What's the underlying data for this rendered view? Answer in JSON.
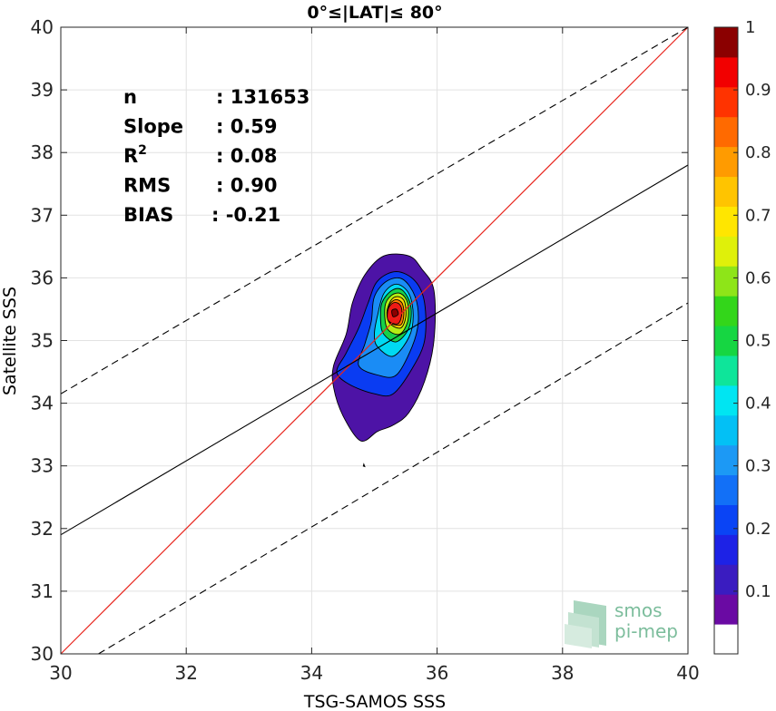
{
  "chart_data": {
    "type": "contour",
    "title": "0°≤|LAT|≤ 80°",
    "xlabel": "TSG-SAMOS SSS",
    "ylabel": "Satellite SSS",
    "xlim": [
      30,
      40
    ],
    "ylim": [
      30,
      40
    ],
    "xticks": [
      "30",
      "32",
      "34",
      "36",
      "38",
      "40"
    ],
    "yticks": [
      "30",
      "31",
      "32",
      "33",
      "34",
      "35",
      "36",
      "37",
      "38",
      "39",
      "40"
    ],
    "grid": true,
    "stats": [
      {
        "label": "n",
        "sep": ":",
        "value": "131653"
      },
      {
        "label": "Slope",
        "sep": ":",
        "value": "0.59"
      },
      {
        "label": "R",
        "sup": "2",
        "sep": ":",
        "value": "0.08"
      },
      {
        "label": "RMS",
        "sep": ":",
        "value": "0.90"
      },
      {
        "label": "BIAS",
        "sep": ":",
        "value": "-0.21"
      }
    ],
    "lines": {
      "identity": {
        "x": [
          30,
          40
        ],
        "y": [
          30,
          40
        ],
        "color": "#e8241c"
      },
      "fit": {
        "x": [
          30,
          40
        ],
        "y": [
          31.9,
          37.8
        ],
        "color": "#000000"
      },
      "upper_dashed": {
        "x": [
          30,
          40
        ],
        "y": [
          34.15,
          40.0
        ]
      },
      "lower_dashed": {
        "x": [
          30.6,
          40
        ],
        "y": [
          30,
          35.6
        ]
      }
    },
    "contour_levels": [
      {
        "level": 0.05,
        "color": "#4d13a6",
        "points": [
          [
            34.35,
            34.6
          ],
          [
            34.35,
            34.25
          ],
          [
            34.5,
            33.8
          ],
          [
            34.78,
            33.4
          ],
          [
            35.05,
            33.55
          ],
          [
            35.3,
            33.65
          ],
          [
            35.55,
            33.85
          ],
          [
            35.8,
            34.35
          ],
          [
            35.95,
            35.0
          ],
          [
            35.95,
            35.8
          ],
          [
            35.75,
            36.15
          ],
          [
            35.55,
            36.35
          ],
          [
            35.15,
            36.35
          ],
          [
            34.85,
            36.05
          ],
          [
            34.65,
            35.6
          ],
          [
            34.55,
            35.1
          ]
        ]
      },
      {
        "level": 0.2,
        "color": "#0a3cf2",
        "points": [
          [
            34.4,
            34.5
          ],
          [
            34.6,
            34.3
          ],
          [
            35.0,
            34.15
          ],
          [
            35.3,
            34.15
          ],
          [
            35.6,
            34.55
          ],
          [
            35.8,
            35.0
          ],
          [
            35.8,
            35.6
          ],
          [
            35.65,
            35.95
          ],
          [
            35.35,
            36.1
          ],
          [
            35.05,
            35.95
          ],
          [
            34.9,
            35.6
          ],
          [
            34.75,
            35.2
          ],
          [
            34.55,
            34.8
          ]
        ]
      },
      {
        "level": 0.3,
        "color": "#1a8cf5",
        "points": [
          [
            34.75,
            34.6
          ],
          [
            35.05,
            34.45
          ],
          [
            35.35,
            34.45
          ],
          [
            35.6,
            34.9
          ],
          [
            35.7,
            35.3
          ],
          [
            35.65,
            35.7
          ],
          [
            35.45,
            35.98
          ],
          [
            35.2,
            35.95
          ],
          [
            35.0,
            35.7
          ],
          [
            34.95,
            35.3
          ],
          [
            34.85,
            34.95
          ]
        ]
      },
      {
        "level": 0.4,
        "color": "#00d9f2",
        "points": [
          [
            35.05,
            34.9
          ],
          [
            35.3,
            34.75
          ],
          [
            35.55,
            35.05
          ],
          [
            35.62,
            35.4
          ],
          [
            35.55,
            35.75
          ],
          [
            35.35,
            35.9
          ],
          [
            35.15,
            35.75
          ],
          [
            35.05,
            35.4
          ],
          [
            35.0,
            35.1
          ]
        ]
      },
      {
        "level": 0.5,
        "color": "#17d149",
        "points": [
          [
            35.15,
            35.1
          ],
          [
            35.35,
            34.98
          ],
          [
            35.55,
            35.2
          ],
          [
            35.58,
            35.55
          ],
          [
            35.45,
            35.8
          ],
          [
            35.28,
            35.8
          ],
          [
            35.12,
            35.6
          ],
          [
            35.1,
            35.3
          ]
        ]
      },
      {
        "level": 0.6,
        "color": "#b3ef14",
        "points": [
          [
            35.2,
            35.2
          ],
          [
            35.4,
            35.1
          ],
          [
            35.53,
            35.3
          ],
          [
            35.53,
            35.6
          ],
          [
            35.42,
            35.75
          ],
          [
            35.27,
            35.72
          ],
          [
            35.17,
            35.55
          ]
        ]
      },
      {
        "level": 0.7,
        "color": "#ffd800",
        "points": [
          [
            35.25,
            35.27
          ],
          [
            35.42,
            35.2
          ],
          [
            35.5,
            35.38
          ],
          [
            35.48,
            35.62
          ],
          [
            35.38,
            35.7
          ],
          [
            35.27,
            35.65
          ],
          [
            35.2,
            35.45
          ]
        ]
      },
      {
        "level": 0.8,
        "color": "#ff7a00",
        "points": [
          [
            35.25,
            35.28
          ],
          [
            35.42,
            35.25
          ],
          [
            35.47,
            35.42
          ],
          [
            35.44,
            35.6
          ],
          [
            35.33,
            35.65
          ],
          [
            35.23,
            35.55
          ],
          [
            35.22,
            35.38
          ]
        ]
      },
      {
        "level": 0.9,
        "color": "#ee1a16",
        "points": [
          [
            35.22,
            35.32
          ],
          [
            35.38,
            35.27
          ],
          [
            35.44,
            35.45
          ],
          [
            35.4,
            35.58
          ],
          [
            35.3,
            35.6
          ],
          [
            35.22,
            35.5
          ]
        ]
      },
      {
        "level": 1.0,
        "color": "#8b0000",
        "points": [
          [
            35.3,
            35.38
          ],
          [
            35.38,
            35.42
          ],
          [
            35.35,
            35.5
          ],
          [
            35.28,
            35.48
          ]
        ]
      }
    ],
    "colorbar": {
      "range": [
        0,
        1
      ],
      "ticks": [
        "0.1",
        "0.2",
        "0.3",
        "0.4",
        "0.5",
        "0.6",
        "0.7",
        "0.8",
        "0.9",
        "1"
      ],
      "colors": [
        "#ffffff",
        "#6a0aa3",
        "#3a1cc0",
        "#1d22e6",
        "#0a44f5",
        "#1270f7",
        "#1c99f5",
        "#03c0f5",
        "#00e5f2",
        "#0ee59a",
        "#16d642",
        "#33d61a",
        "#8ee518",
        "#dff00a",
        "#ffe600",
        "#ffc400",
        "#ff9b00",
        "#ff6a00",
        "#ff3300",
        "#f20000",
        "#8b0000"
      ]
    },
    "logo": {
      "line1": "smos",
      "line2": "pi-mep"
    }
  }
}
